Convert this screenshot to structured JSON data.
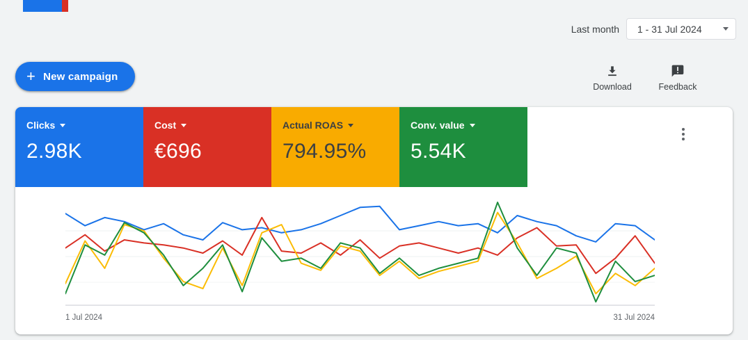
{
  "colors": {
    "page_background": "#f1f3f4",
    "panel_background": "#ffffff",
    "primary_blue": "#1a73e8",
    "text_dark": "#3c4043",
    "text_gray": "#5f6368",
    "border_gray": "#dadce0"
  },
  "header": {
    "period_label": "Last month",
    "date_range_value": "1 - 31 Jul 2024"
  },
  "toolbar": {
    "new_campaign": "New campaign",
    "download": "Download",
    "feedback": "Feedback"
  },
  "scorecards": [
    {
      "label": "Clicks",
      "value": "2.98K",
      "bg": "#1a73e8",
      "fg": "#ffffff"
    },
    {
      "label": "Cost",
      "value": "€696",
      "bg": "#d93025",
      "fg": "#ffffff"
    },
    {
      "label": "Actual ROAS",
      "value": "794.95%",
      "bg": "#f9ab00",
      "fg": "#3c4043"
    },
    {
      "label": "Conv. value",
      "value": "5.54K",
      "bg": "#1e8e3e",
      "fg": "#ffffff"
    }
  ],
  "chart_data": {
    "type": "line",
    "title": "",
    "xlabel": "",
    "ylabel": "",
    "x_axis_start_label": "1 Jul 2024",
    "x_axis_end_label": "31 Jul 2024",
    "x": [
      1,
      2,
      3,
      4,
      5,
      6,
      7,
      8,
      9,
      10,
      11,
      12,
      13,
      14,
      15,
      16,
      17,
      18,
      19,
      20,
      21,
      22,
      23,
      24,
      25,
      26,
      27,
      28,
      29,
      30,
      31
    ],
    "ylim": [
      0,
      100
    ],
    "y_units": "normalized 0-100 (no y-axis tick labels shown in chart)",
    "grid": "faint horizontal lines",
    "legend": "none (series colors match scorecards)",
    "series": [
      {
        "name": "Clicks",
        "color": "#1a73e8",
        "values": [
          89,
          77,
          85,
          81,
          73,
          79,
          68,
          63,
          80,
          73,
          75,
          70,
          73,
          79,
          87,
          95,
          96,
          73,
          77,
          81,
          77,
          79,
          70,
          87,
          81,
          77,
          67,
          61,
          79,
          77,
          63
        ]
      },
      {
        "name": "Cost",
        "color": "#d93025",
        "values": [
          55,
          68,
          52,
          63,
          60,
          58,
          55,
          50,
          62,
          48,
          85,
          52,
          50,
          60,
          48,
          63,
          45,
          57,
          60,
          55,
          50,
          55,
          48,
          65,
          75,
          57,
          58,
          30,
          45,
          67,
          40
        ]
      },
      {
        "name": "Actual ROAS",
        "color": "#fbbc04",
        "values": [
          20,
          62,
          35,
          78,
          72,
          45,
          22,
          15,
          55,
          18,
          70,
          78,
          40,
          33,
          57,
          52,
          28,
          42,
          25,
          32,
          37,
          42,
          90,
          60,
          25,
          35,
          47,
          10,
          30,
          18,
          35
        ]
      },
      {
        "name": "Conv. value",
        "color": "#1e8e3e",
        "values": [
          10,
          58,
          48,
          80,
          70,
          48,
          18,
          35,
          58,
          12,
          65,
          42,
          45,
          35,
          60,
          55,
          30,
          45,
          28,
          35,
          40,
          45,
          100,
          55,
          28,
          55,
          50,
          2,
          42,
          22,
          28
        ]
      }
    ]
  }
}
